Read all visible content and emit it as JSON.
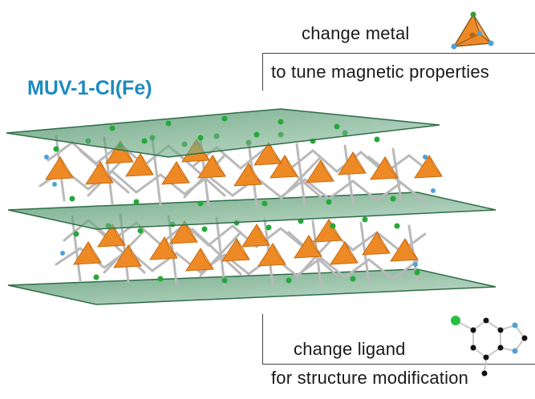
{
  "title": "MUV-1-Cl(Fe)",
  "top_note": {
    "line1": "change metal",
    "line2": "to tune magnetic properties"
  },
  "bottom_note": {
    "line1": "change ligand",
    "line2": "for structure modification"
  },
  "icons": {
    "metal": "tetrahedron-icon",
    "ligand": "chloro-imidazole-ligand-icon"
  },
  "colors": {
    "title": "#1f8ac0",
    "plane": "#5d9d74",
    "tetrahedron": "#ee8a26",
    "chlorine": "#25a83a",
    "nitrogen": "#4fa1d9",
    "bond": "#b9b9b9"
  }
}
